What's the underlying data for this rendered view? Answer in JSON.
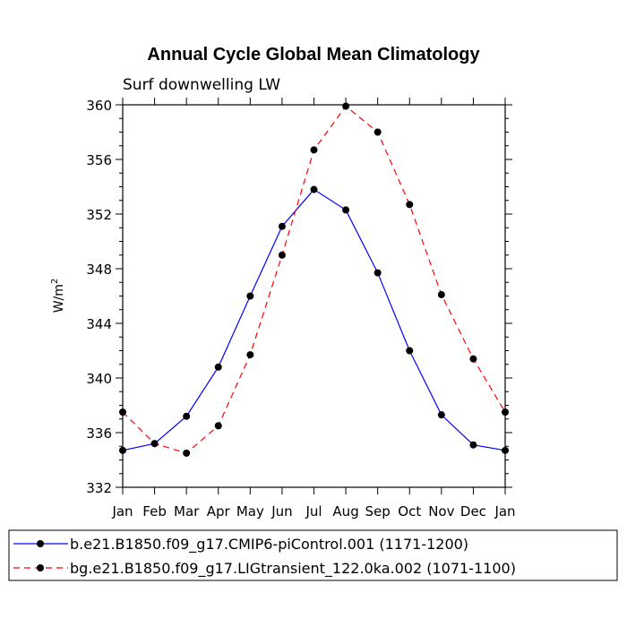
{
  "chart_data": {
    "type": "line",
    "title": "Annual Cycle Global Mean Climatology",
    "subtitle": "Surf downwelling LW",
    "xlabel": "",
    "ylabel": "W/m",
    "ylabel_superscript": "2",
    "categories": [
      "Jan",
      "Feb",
      "Mar",
      "Apr",
      "May",
      "Jun",
      "Jul",
      "Aug",
      "Sep",
      "Oct",
      "Nov",
      "Dec",
      "Jan"
    ],
    "ylim": [
      332,
      360
    ],
    "yticks": [
      332,
      336,
      340,
      344,
      348,
      352,
      356,
      360
    ],
    "grid": false,
    "legend_position": "bottom",
    "series": [
      {
        "name": "b.e21.B1850.f09_g17.CMIP6-piControl.001 (1171-1200)",
        "color": "#0000ff",
        "dash": "solid",
        "values": [
          334.7,
          335.2,
          337.2,
          340.8,
          346.0,
          351.1,
          353.8,
          352.3,
          347.7,
          342.0,
          337.3,
          335.1,
          334.7
        ]
      },
      {
        "name": "bg.e21.B1850.f09_g17.LIGtransient_122.0ka.002 (1071-1100)",
        "color": "#ff0000",
        "dash": "dashed",
        "values": [
          337.5,
          335.2,
          334.5,
          336.5,
          341.7,
          349.0,
          356.7,
          359.9,
          358.0,
          352.7,
          346.1,
          341.4,
          337.5
        ]
      }
    ]
  }
}
